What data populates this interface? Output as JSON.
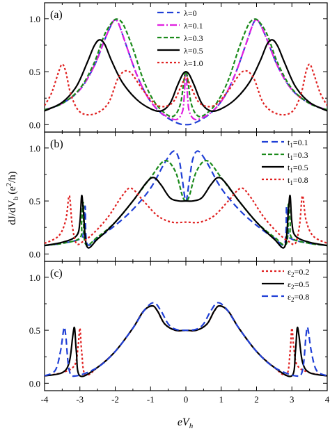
{
  "figure": {
    "xlabel": "eV",
    "xlabel_sub": "h",
    "ylabel_main": "dJ/dV",
    "ylabel_sub": "b",
    "ylabel_paren": "(e",
    "ylabel_sup": "2",
    "ylabel_end": "/h)"
  },
  "chart_data": [
    {
      "type": "line",
      "panel_label": "(a)",
      "xlim": [
        -4,
        4
      ],
      "ylim": [
        -0.07,
        1.15
      ],
      "yticks": [
        "0.0",
        "0.5",
        "1.0"
      ],
      "xticks": [
        "-4",
        "-3",
        "-2",
        "-1",
        "0",
        "1",
        "2",
        "3",
        "4"
      ],
      "legend_position": "top-center",
      "series": [
        {
          "name": "λ=0",
          "legend_text": "λ=0",
          "color": "#1f3fd6",
          "dash": "long-dash",
          "x": [
            -4,
            -3.5,
            -3,
            -2.6,
            -2.3,
            -2.1,
            -2.0,
            -1.9,
            -1.7,
            -1.4,
            -1.1,
            -0.8,
            -0.5,
            -0.2,
            0,
            0.2,
            0.5,
            0.8,
            1.1,
            1.4,
            1.7,
            1.9,
            2.0,
            2.1,
            2.3,
            2.6,
            3,
            3.5,
            4
          ],
          "y": [
            0.14,
            0.2,
            0.33,
            0.55,
            0.8,
            0.95,
            0.99,
            0.95,
            0.76,
            0.48,
            0.27,
            0.14,
            0.06,
            0.01,
            0.0,
            0.01,
            0.06,
            0.14,
            0.27,
            0.48,
            0.76,
            0.95,
            0.99,
            0.95,
            0.8,
            0.55,
            0.33,
            0.2,
            0.14
          ]
        },
        {
          "name": "λ=0.1",
          "legend_text": "λ=0.1",
          "color": "#e020e0",
          "dash": "dash-dot",
          "x": [
            -4,
            -3.5,
            -3,
            -2.6,
            -2.3,
            -2.1,
            -2.0,
            -1.9,
            -1.7,
            -1.4,
            -1.1,
            -0.8,
            -0.5,
            -0.25,
            -0.1,
            -0.05,
            0,
            0.05,
            0.1,
            0.25,
            0.5,
            0.8,
            1.1,
            1.4,
            1.7,
            1.9,
            2.0,
            2.1,
            2.3,
            2.6,
            3,
            3.5,
            4
          ],
          "y": [
            0.14,
            0.2,
            0.33,
            0.55,
            0.8,
            0.95,
            0.99,
            0.95,
            0.76,
            0.48,
            0.27,
            0.14,
            0.07,
            0.05,
            0.12,
            0.25,
            0.5,
            0.25,
            0.12,
            0.05,
            0.07,
            0.14,
            0.27,
            0.48,
            0.76,
            0.95,
            0.99,
            0.95,
            0.8,
            0.55,
            0.33,
            0.2,
            0.14
          ]
        },
        {
          "name": "λ=0.3",
          "legend_text": "λ=0.3",
          "color": "#1a8a1a",
          "dash": "short-dash",
          "x": [
            -4,
            -3.5,
            -3,
            -2.6,
            -2.3,
            -2.05,
            -1.9,
            -1.75,
            -1.5,
            -1.2,
            -0.9,
            -0.6,
            -0.35,
            -0.15,
            0,
            0.15,
            0.35,
            0.6,
            0.9,
            1.2,
            1.5,
            1.75,
            1.9,
            2.05,
            2.3,
            2.6,
            3,
            3.5,
            4
          ],
          "y": [
            0.14,
            0.2,
            0.34,
            0.58,
            0.85,
            0.98,
            0.99,
            0.93,
            0.72,
            0.42,
            0.22,
            0.11,
            0.08,
            0.2,
            0.5,
            0.2,
            0.08,
            0.11,
            0.22,
            0.42,
            0.72,
            0.93,
            0.99,
            0.98,
            0.85,
            0.58,
            0.34,
            0.2,
            0.14
          ]
        },
        {
          "name": "λ=0.5",
          "legend_text": "λ=0.5",
          "color": "#000000",
          "dash": "solid",
          "x": [
            -4,
            -3.5,
            -3.1,
            -2.8,
            -2.6,
            -2.45,
            -2.3,
            -2.1,
            -1.8,
            -1.4,
            -1.0,
            -0.7,
            -0.45,
            -0.25,
            -0.1,
            0,
            0.1,
            0.25,
            0.45,
            0.7,
            1.0,
            1.4,
            1.8,
            2.1,
            2.3,
            2.45,
            2.6,
            2.8,
            3.1,
            3.5,
            4
          ],
          "y": [
            0.13,
            0.21,
            0.36,
            0.58,
            0.74,
            0.8,
            0.76,
            0.6,
            0.4,
            0.24,
            0.15,
            0.13,
            0.2,
            0.36,
            0.47,
            0.5,
            0.47,
            0.36,
            0.2,
            0.13,
            0.15,
            0.24,
            0.4,
            0.6,
            0.76,
            0.8,
            0.74,
            0.58,
            0.36,
            0.21,
            0.13
          ]
        },
        {
          "name": "λ=1.0",
          "legend_text": "λ=1.0",
          "color": "#e02020",
          "dash": "dot",
          "x": [
            -4,
            -3.8,
            -3.6,
            -3.5,
            -3.4,
            -3.25,
            -3.0,
            -2.6,
            -2.2,
            -1.9,
            -1.6,
            -1.2,
            -0.8,
            -0.4,
            -0.15,
            0,
            0.15,
            0.4,
            0.8,
            1.2,
            1.6,
            1.9,
            2.2,
            2.6,
            3.0,
            3.25,
            3.4,
            3.5,
            3.6,
            3.8,
            4
          ],
          "y": [
            0.18,
            0.3,
            0.5,
            0.57,
            0.5,
            0.28,
            0.12,
            0.1,
            0.2,
            0.45,
            0.5,
            0.32,
            0.18,
            0.2,
            0.35,
            0.45,
            0.35,
            0.2,
            0.18,
            0.32,
            0.5,
            0.45,
            0.2,
            0.1,
            0.12,
            0.28,
            0.5,
            0.57,
            0.5,
            0.3,
            0.18
          ]
        }
      ]
    },
    {
      "type": "line",
      "panel_label": "(b)",
      "xlim": [
        -4,
        4
      ],
      "ylim": [
        -0.07,
        1.15
      ],
      "yticks": [
        "0.0",
        "0.5",
        "1.0"
      ],
      "xticks": [
        "-4",
        "-3",
        "-2",
        "-1",
        "0",
        "1",
        "2",
        "3",
        "4"
      ],
      "legend_position": "top-right",
      "series": [
        {
          "name": "t1=0.1",
          "legend_text": "t",
          "legend_sub": "1",
          "legend_value": "=0.1",
          "color": "#1f3fd6",
          "dash": "long-dash",
          "x": [
            -4,
            -3.5,
            -3.0,
            -2.9,
            -2.85,
            -2.8,
            -2.5,
            -2.0,
            -1.5,
            -1.0,
            -0.6,
            -0.35,
            -0.2,
            -0.1,
            0,
            0.1,
            0.2,
            0.35,
            0.6,
            1.0,
            1.5,
            2.0,
            2.5,
            2.8,
            2.85,
            2.9,
            3.0,
            3.5,
            4
          ],
          "y": [
            0.08,
            0.1,
            0.14,
            0.2,
            0.45,
            0.1,
            0.15,
            0.27,
            0.42,
            0.62,
            0.86,
            0.97,
            0.9,
            0.7,
            0.5,
            0.7,
            0.9,
            0.97,
            0.86,
            0.62,
            0.42,
            0.27,
            0.15,
            0.1,
            0.45,
            0.2,
            0.14,
            0.1,
            0.08
          ]
        },
        {
          "name": "t1=0.3",
          "legend_text": "t",
          "legend_sub": "1",
          "legend_value": "=0.3",
          "color": "#1a8a1a",
          "dash": "short-dash",
          "x": [
            -4,
            -3.5,
            -3.0,
            -2.95,
            -2.9,
            -2.85,
            -2.5,
            -2.0,
            -1.5,
            -1.0,
            -0.6,
            -0.3,
            -0.1,
            0,
            0.1,
            0.3,
            0.6,
            1.0,
            1.5,
            2.0,
            2.5,
            2.85,
            2.9,
            2.95,
            3.0,
            3.5,
            4
          ],
          "y": [
            0.08,
            0.1,
            0.15,
            0.3,
            0.48,
            0.1,
            0.16,
            0.3,
            0.5,
            0.72,
            0.88,
            0.78,
            0.55,
            0.5,
            0.55,
            0.78,
            0.88,
            0.72,
            0.5,
            0.3,
            0.16,
            0.1,
            0.48,
            0.3,
            0.15,
            0.1,
            0.08
          ]
        },
        {
          "name": "t1=0.5",
          "legend_text": "t",
          "legend_sub": "1",
          "legend_value": "=0.5",
          "color": "#000000",
          "dash": "solid",
          "x": [
            -4,
            -3.5,
            -3.1,
            -3.0,
            -2.95,
            -2.9,
            -2.8,
            -2.5,
            -2.0,
            -1.5,
            -1.1,
            -0.9,
            -0.7,
            -0.45,
            -0.2,
            0,
            0.2,
            0.45,
            0.7,
            0.9,
            1.1,
            1.5,
            2.0,
            2.5,
            2.8,
            2.9,
            2.95,
            3.0,
            3.1,
            3.5,
            4
          ],
          "y": [
            0.08,
            0.11,
            0.17,
            0.3,
            0.55,
            0.4,
            0.07,
            0.14,
            0.3,
            0.5,
            0.68,
            0.72,
            0.65,
            0.53,
            0.5,
            0.5,
            0.5,
            0.53,
            0.65,
            0.72,
            0.68,
            0.5,
            0.3,
            0.14,
            0.07,
            0.4,
            0.55,
            0.3,
            0.17,
            0.11,
            0.08
          ]
        },
        {
          "name": "t1=0.8",
          "legend_text": "t",
          "legend_sub": "1",
          "legend_value": "=0.8",
          "color": "#e02020",
          "dash": "dot",
          "x": [
            -4,
            -3.6,
            -3.4,
            -3.3,
            -3.22,
            -3.1,
            -2.9,
            -2.6,
            -2.2,
            -1.8,
            -1.55,
            -1.2,
            -0.8,
            -0.4,
            0,
            0.4,
            0.8,
            1.2,
            1.55,
            1.8,
            2.2,
            2.6,
            2.9,
            3.1,
            3.22,
            3.3,
            3.4,
            3.6,
            4
          ],
          "y": [
            0.1,
            0.17,
            0.32,
            0.55,
            0.28,
            0.1,
            0.12,
            0.2,
            0.35,
            0.55,
            0.62,
            0.5,
            0.36,
            0.3,
            0.3,
            0.3,
            0.36,
            0.5,
            0.62,
            0.55,
            0.35,
            0.2,
            0.12,
            0.1,
            0.28,
            0.55,
            0.32,
            0.17,
            0.1
          ]
        }
      ]
    },
    {
      "type": "line",
      "panel_label": "(c)",
      "xlim": [
        -4,
        4
      ],
      "ylim": [
        -0.07,
        1.15
      ],
      "yticks": [
        "0.0",
        "0.5",
        "1.0"
      ],
      "xticks": [
        "-4",
        "-3",
        "-2",
        "-1",
        "0",
        "1",
        "2",
        "3",
        "4"
      ],
      "legend_position": "top-right",
      "series": [
        {
          "name": "ε2=0.2",
          "legend_text": "ε",
          "legend_sub": "2",
          "legend_value": "=0.2",
          "color": "#e02020",
          "dash": "dot",
          "x": [
            -4,
            -3.5,
            -3.15,
            -3.05,
            -3.0,
            -2.95,
            -2.85,
            -2.5,
            -2.0,
            -1.5,
            -1.2,
            -0.95,
            -0.8,
            -0.6,
            -0.3,
            0,
            0.3,
            0.6,
            0.8,
            0.95,
            1.2,
            1.5,
            2.0,
            2.5,
            2.85,
            2.95,
            3.0,
            3.05,
            3.15,
            3.5,
            4
          ],
          "y": [
            0.07,
            0.1,
            0.17,
            0.35,
            0.52,
            0.3,
            0.08,
            0.15,
            0.3,
            0.52,
            0.68,
            0.73,
            0.68,
            0.56,
            0.5,
            0.5,
            0.5,
            0.56,
            0.68,
            0.73,
            0.68,
            0.52,
            0.3,
            0.15,
            0.08,
            0.3,
            0.52,
            0.35,
            0.17,
            0.1,
            0.07
          ]
        },
        {
          "name": "ε2=0.5",
          "legend_text": "ε",
          "legend_sub": "2",
          "legend_value": "=0.5",
          "color": "#000000",
          "dash": "solid",
          "x": [
            -4,
            -3.5,
            -3.3,
            -3.2,
            -3.15,
            -3.1,
            -3.0,
            -2.5,
            -2.0,
            -1.5,
            -1.2,
            -0.95,
            -0.8,
            -0.6,
            -0.3,
            0,
            0.3,
            0.6,
            0.8,
            0.95,
            1.2,
            1.5,
            2.0,
            2.5,
            3.0,
            3.1,
            3.15,
            3.2,
            3.3,
            3.5,
            4
          ],
          "y": [
            0.07,
            0.1,
            0.2,
            0.45,
            0.52,
            0.3,
            0.07,
            0.15,
            0.3,
            0.52,
            0.68,
            0.73,
            0.68,
            0.56,
            0.5,
            0.5,
            0.5,
            0.56,
            0.68,
            0.73,
            0.68,
            0.52,
            0.3,
            0.15,
            0.07,
            0.3,
            0.52,
            0.45,
            0.2,
            0.1,
            0.07
          ]
        },
        {
          "name": "ε2=0.8",
          "legend_text": "ε",
          "legend_sub": "2",
          "legend_value": "=0.8",
          "color": "#1f3fd6",
          "dash": "long-dash",
          "x": [
            -4,
            -3.7,
            -3.55,
            -3.45,
            -3.4,
            -3.3,
            -3.1,
            -2.5,
            -2.0,
            -1.5,
            -1.15,
            -0.9,
            -0.7,
            -0.5,
            -0.3,
            0,
            0.3,
            0.5,
            0.7,
            0.9,
            1.15,
            1.5,
            2.0,
            2.5,
            3.1,
            3.3,
            3.4,
            3.45,
            3.55,
            3.7,
            4
          ],
          "y": [
            0.07,
            0.12,
            0.3,
            0.52,
            0.45,
            0.12,
            0.07,
            0.15,
            0.3,
            0.52,
            0.7,
            0.76,
            0.68,
            0.56,
            0.51,
            0.5,
            0.51,
            0.56,
            0.68,
            0.76,
            0.7,
            0.52,
            0.3,
            0.15,
            0.07,
            0.12,
            0.45,
            0.52,
            0.3,
            0.12,
            0.07
          ]
        }
      ]
    }
  ]
}
